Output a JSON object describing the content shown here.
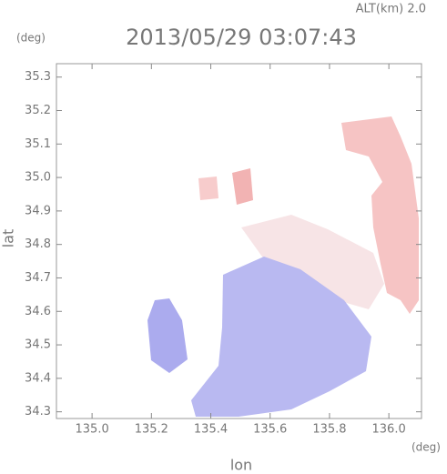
{
  "chart_data": {
    "type": "map",
    "title": "2013/05/29 03:07:43",
    "altitude_label": "ALT(km)  2.0",
    "x_label": "lon",
    "y_label": "lat",
    "x_unit": "(deg)",
    "y_unit": "(deg)",
    "xlim": [
      134.88,
      136.11
    ],
    "ylim": [
      34.28,
      35.34
    ],
    "xticks": [
      {
        "value": 135.0,
        "label": "135.0"
      },
      135.2,
      135.4,
      135.6,
      135.8,
      {
        "value": 136.0,
        "label": "136.0"
      }
    ],
    "yticks": [
      34.3,
      34.4,
      34.5,
      34.6,
      34.7,
      34.8,
      34.9,
      {
        "value": 35.0,
        "label": "35.0"
      },
      35.1,
      35.2,
      35.3
    ]
  }
}
